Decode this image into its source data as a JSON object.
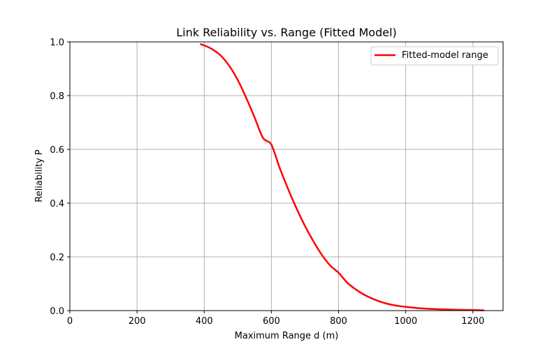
{
  "chart_data": {
    "type": "line",
    "title": "Link Reliability vs. Range (Fitted Model)",
    "xlabel": "Maximum Range d (m)",
    "ylabel": "Reliability P",
    "xlim": [
      0,
      1290
    ],
    "ylim": [
      0,
      1.0
    ],
    "x_ticks": [
      0,
      200,
      400,
      600,
      800,
      1000,
      1200
    ],
    "y_ticks": [
      0.0,
      0.2,
      0.4,
      0.6,
      0.8,
      1.0
    ],
    "x_tick_labels": [
      "0",
      "200",
      "400",
      "600",
      "800",
      "1000",
      "1200"
    ],
    "y_tick_labels": [
      "0.0",
      "0.2",
      "0.4",
      "0.6",
      "0.8",
      "1.0"
    ],
    "grid": true,
    "legend_position": "top-right",
    "series": [
      {
        "name": "Fitted-model range",
        "color": "#ff0000",
        "x": [
          390,
          400,
          425,
          450,
          475,
          500,
          525,
          550,
          575,
          600,
          625,
          650,
          675,
          700,
          725,
          750,
          775,
          800,
          825,
          850,
          875,
          900,
          925,
          950,
          975,
          1000,
          1050,
          1100,
          1150,
          1200,
          1232
        ],
        "y": [
          0.991,
          0.987,
          0.972,
          0.948,
          0.91,
          0.858,
          0.792,
          0.719,
          0.643,
          0.617,
          0.53,
          0.452,
          0.38,
          0.315,
          0.258,
          0.208,
          0.168,
          0.141,
          0.105,
          0.08,
          0.06,
          0.045,
          0.033,
          0.024,
          0.018,
          0.014,
          0.008,
          0.005,
          0.003,
          0.002,
          0.001
        ]
      }
    ]
  }
}
